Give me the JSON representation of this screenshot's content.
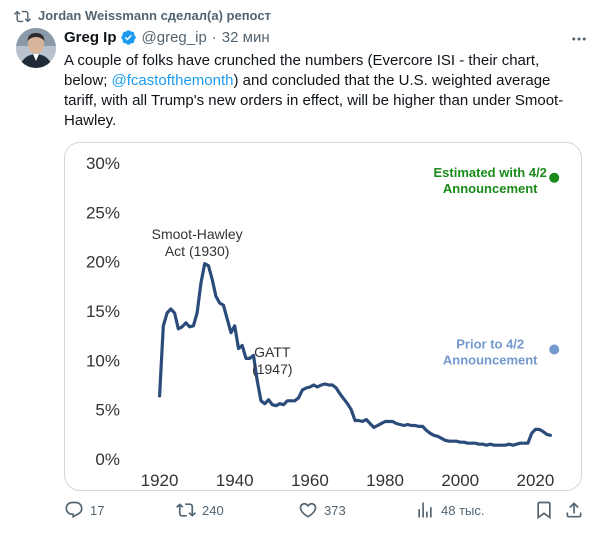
{
  "repost": {
    "text": "Jordan Weissmann сделал(а) репост",
    "icon": "repost-icon"
  },
  "author": {
    "name": "Greg Ip",
    "handle": "@greg_ip",
    "separator": "·",
    "time": "32 мин",
    "verified_color": "#1d9bf0"
  },
  "tweet": {
    "text_before": "A couple of folks have crunched the numbers (Evercore ISI - their chart, below; ",
    "mention": "@fcastofthemonth",
    "text_after": ") and concluded that the U.S. weighted average tariff, with all Trump's new orders in effect, will be higher than under Smoot-Hawley."
  },
  "chart_data": {
    "type": "line",
    "x_ticks": [
      "1920",
      "1940",
      "1960",
      "1980",
      "2000",
      "2020"
    ],
    "y_ticks": [
      "0%",
      "5%",
      "10%",
      "15%",
      "20%",
      "25%",
      "30%"
    ],
    "xlim": [
      1914,
      2030
    ],
    "ylim": [
      0,
      30
    ],
    "grid": false,
    "series": [
      {
        "color": "#2b4b7a",
        "x": [
          1920,
          1921,
          1922,
          1923,
          1924,
          1925,
          1926,
          1927,
          1928,
          1929,
          1930,
          1931,
          1932,
          1933,
          1934,
          1935,
          1936,
          1937,
          1938,
          1939,
          1940,
          1941,
          1942,
          1943,
          1944,
          1945,
          1946,
          1947,
          1948,
          1949,
          1950,
          1951,
          1952,
          1953,
          1954,
          1955,
          1956,
          1957,
          1958,
          1959,
          1960,
          1961,
          1962,
          1963,
          1964,
          1965,
          1966,
          1967,
          1968,
          1969,
          1970,
          1971,
          1972,
          1973,
          1974,
          1975,
          1976,
          1977,
          1978,
          1979,
          1980,
          1981,
          1982,
          1983,
          1984,
          1985,
          1986,
          1987,
          1988,
          1989,
          1990,
          1991,
          1992,
          1993,
          1994,
          1995,
          1996,
          1997,
          1998,
          1999,
          2000,
          2001,
          2002,
          2003,
          2004,
          2005,
          2006,
          2007,
          2008,
          2009,
          2010,
          2011,
          2012,
          2013,
          2014,
          2015,
          2016,
          2017,
          2018,
          2019,
          2020,
          2021,
          2022,
          2023,
          2024
        ],
        "y": [
          6.4,
          13.5,
          14.8,
          15.2,
          14.8,
          13.2,
          13.4,
          13.8,
          13.4,
          13.5,
          14.8,
          17.8,
          19.8,
          19.6,
          18.2,
          16.5,
          15.8,
          15.6,
          14.2,
          12.8,
          13.5,
          11.2,
          11.5,
          10.2,
          10.2,
          10.5,
          7.9,
          5.9,
          5.6,
          6.0,
          5.5,
          5.4,
          5.6,
          5.5,
          5.9,
          5.9,
          5.9,
          6.2,
          7.0,
          7.2,
          7.3,
          7.5,
          7.3,
          7.5,
          7.6,
          7.5,
          7.5,
          7.2,
          6.6,
          6.1,
          5.6,
          5.0,
          3.9,
          3.9,
          3.8,
          4.0,
          3.6,
          3.2,
          3.4,
          3.6,
          3.8,
          3.8,
          3.8,
          3.6,
          3.5,
          3.4,
          3.5,
          3.4,
          3.4,
          3.3,
          3.3,
          2.9,
          2.6,
          2.4,
          2.3,
          2.1,
          1.9,
          1.8,
          1.8,
          1.8,
          1.7,
          1.7,
          1.6,
          1.6,
          1.6,
          1.5,
          1.5,
          1.4,
          1.5,
          1.4,
          1.4,
          1.4,
          1.4,
          1.5,
          1.4,
          1.5,
          1.6,
          1.6,
          1.6,
          2.6,
          3.0,
          3.0,
          2.8,
          2.5,
          2.4
        ]
      }
    ],
    "annotations": [
      {
        "line1": "Smoot-Hawley",
        "line2": "Act (1930)"
      },
      {
        "line1": "GATT",
        "line2": "(1947)"
      }
    ],
    "points": [
      {
        "line1": "Estimated with 4/2",
        "line2": "Announcement",
        "x": 2025,
        "y": 28.5,
        "color": "#1a8a1a"
      },
      {
        "line1": "Prior to 4/2",
        "line2": "Announcement",
        "x": 2025,
        "y": 11.1,
        "color": "#7399cf"
      }
    ]
  },
  "actions": {
    "replies": "17",
    "reposts": "240",
    "likes": "373",
    "views": "48 тыс.",
    "icon_color": "#536471",
    "repost_color": "#536471"
  }
}
